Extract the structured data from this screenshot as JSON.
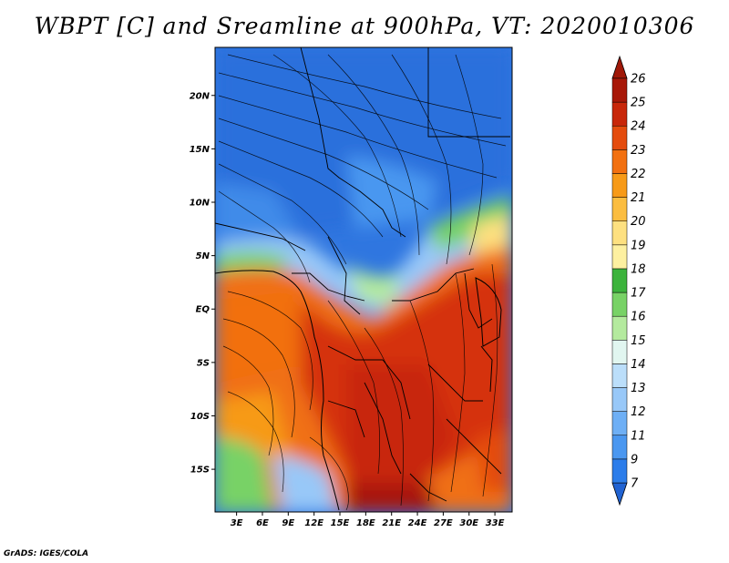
{
  "title": "WBPT [C] and Sreamline at 900hPa, VT: 2020010306",
  "credit": "GrADS: IGES/COLA",
  "map": {
    "lat_labels": [
      "20N",
      "15N",
      "10N",
      "5N",
      "EQ",
      "5S",
      "10S",
      "15S"
    ],
    "lon_labels": [
      "3E",
      "6E",
      "9E",
      "12E",
      "15E",
      "18E",
      "21E",
      "24E",
      "27E",
      "30E",
      "33E"
    ],
    "lat_range": [
      -19,
      24.5
    ],
    "lon_range": [
      0.5,
      35
    ],
    "lat_ticks": [
      20,
      15,
      10,
      5,
      0,
      -5,
      -10,
      -15
    ],
    "lon_ticks": [
      3,
      6,
      9,
      12,
      15,
      18,
      21,
      24,
      27,
      30,
      33
    ]
  },
  "colorbar": {
    "labels": [
      "7",
      "9",
      "11",
      "12",
      "13",
      "14",
      "15",
      "16",
      "17",
      "18",
      "19",
      "20",
      "21",
      "22",
      "23",
      "24",
      "25",
      "26"
    ],
    "colors": [
      "#2163d2",
      "#2c7dea",
      "#4a97f0",
      "#6eaff5",
      "#98c8f8",
      "#bbdefa",
      "#e1f6f0",
      "#b4ea9e",
      "#78d266",
      "#3cb33c",
      "#fdf0a0",
      "#fde080",
      "#fbbd40",
      "#f79a18",
      "#f27010",
      "#e44c0e",
      "#c8270a",
      "#a81808"
    ],
    "extend_low_color": "#2163d2",
    "extend_high_color": "#a01808"
  }
}
